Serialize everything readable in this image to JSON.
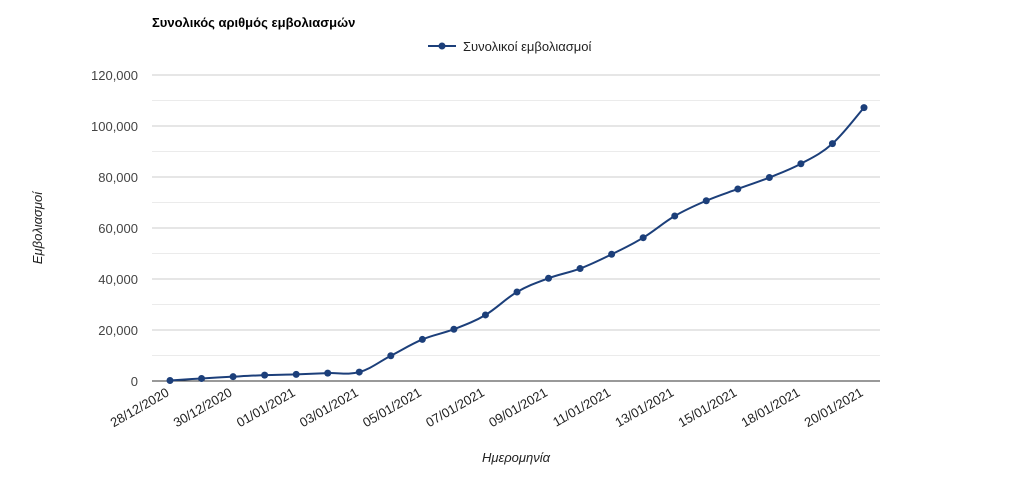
{
  "chart_data": {
    "type": "line",
    "title": "Συνολικός αριθμός εμβολιασμών",
    "xlabel": "Ημερομηνία",
    "ylabel": "Εμβολιασμοί",
    "ylim": [
      0,
      120000
    ],
    "yticks": [
      0,
      20000,
      40000,
      60000,
      80000,
      100000,
      120000
    ],
    "ytick_labels": [
      "0",
      "20,000",
      "40,000",
      "60,000",
      "80,000",
      "100,000",
      "120,000"
    ],
    "grid": true,
    "legend_position": "top-center",
    "x": [
      "28/12/2020",
      "29/12/2020",
      "30/12/2020",
      "31/12/2020",
      "01/01/2021",
      "02/01/2021",
      "03/01/2021",
      "04/01/2021",
      "05/01/2021",
      "06/01/2021",
      "07/01/2021",
      "08/01/2021",
      "09/01/2021",
      "10/01/2021",
      "11/01/2021",
      "12/01/2021",
      "13/01/2021",
      "14/01/2021",
      "15/01/2021",
      "16/01/2021",
      "18/01/2021",
      "19/01/2021",
      "20/01/2021"
    ],
    "xtick_labels": [
      "28/12/2020",
      "30/12/2020",
      "01/01/2021",
      "03/01/2021",
      "05/01/2021",
      "07/01/2021",
      "09/01/2021",
      "11/01/2021",
      "13/01/2021",
      "15/01/2021",
      "18/01/2021",
      "20/01/2021"
    ],
    "series": [
      {
        "name": "Συνολικοί εμβολιασμοί",
        "color": "#1c3f7a",
        "values": [
          200,
          1000,
          1700,
          2300,
          2600,
          3100,
          3500,
          9900,
          16300,
          20300,
          25900,
          34900,
          40300,
          44100,
          49700,
          56200,
          64700,
          70700,
          75300,
          79800,
          85200,
          93100,
          107200
        ]
      }
    ]
  }
}
